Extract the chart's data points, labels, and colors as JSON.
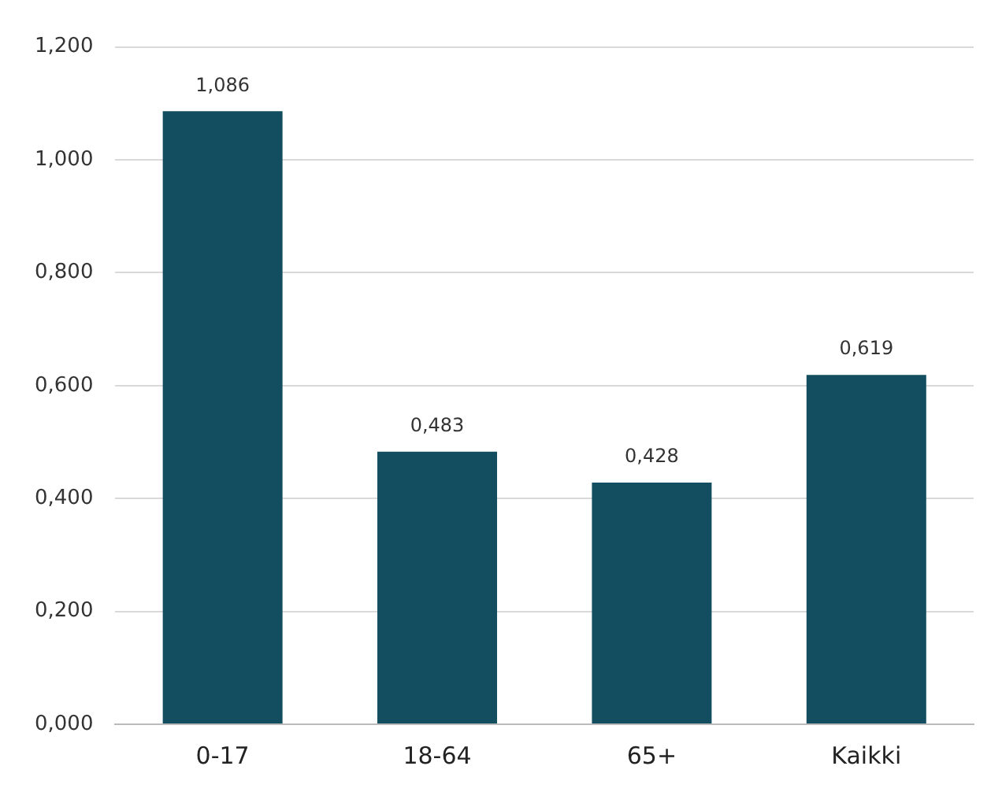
{
  "chart_data": {
    "type": "bar",
    "categories": [
      "0-17",
      "18-64",
      "65+",
      "Kaikki"
    ],
    "values": [
      1.086,
      0.483,
      0.428,
      0.619
    ],
    "value_labels": [
      "1,086",
      "0,483",
      "0,428",
      "0,619"
    ],
    "color": "#124e5f",
    "ylim": [
      0,
      1.2
    ],
    "yticks": [
      {
        "value": 0,
        "label": "0,000"
      },
      {
        "value": 0.2,
        "label": "0,200"
      },
      {
        "value": 0.4,
        "label": "0,400"
      },
      {
        "value": 0.6,
        "label": "0,600"
      },
      {
        "value": 0.8,
        "label": "0,800"
      },
      {
        "value": 1,
        "label": "1,000"
      },
      {
        "value": 1.2,
        "label": "1,200"
      }
    ],
    "grid": "y",
    "legend": false
  }
}
